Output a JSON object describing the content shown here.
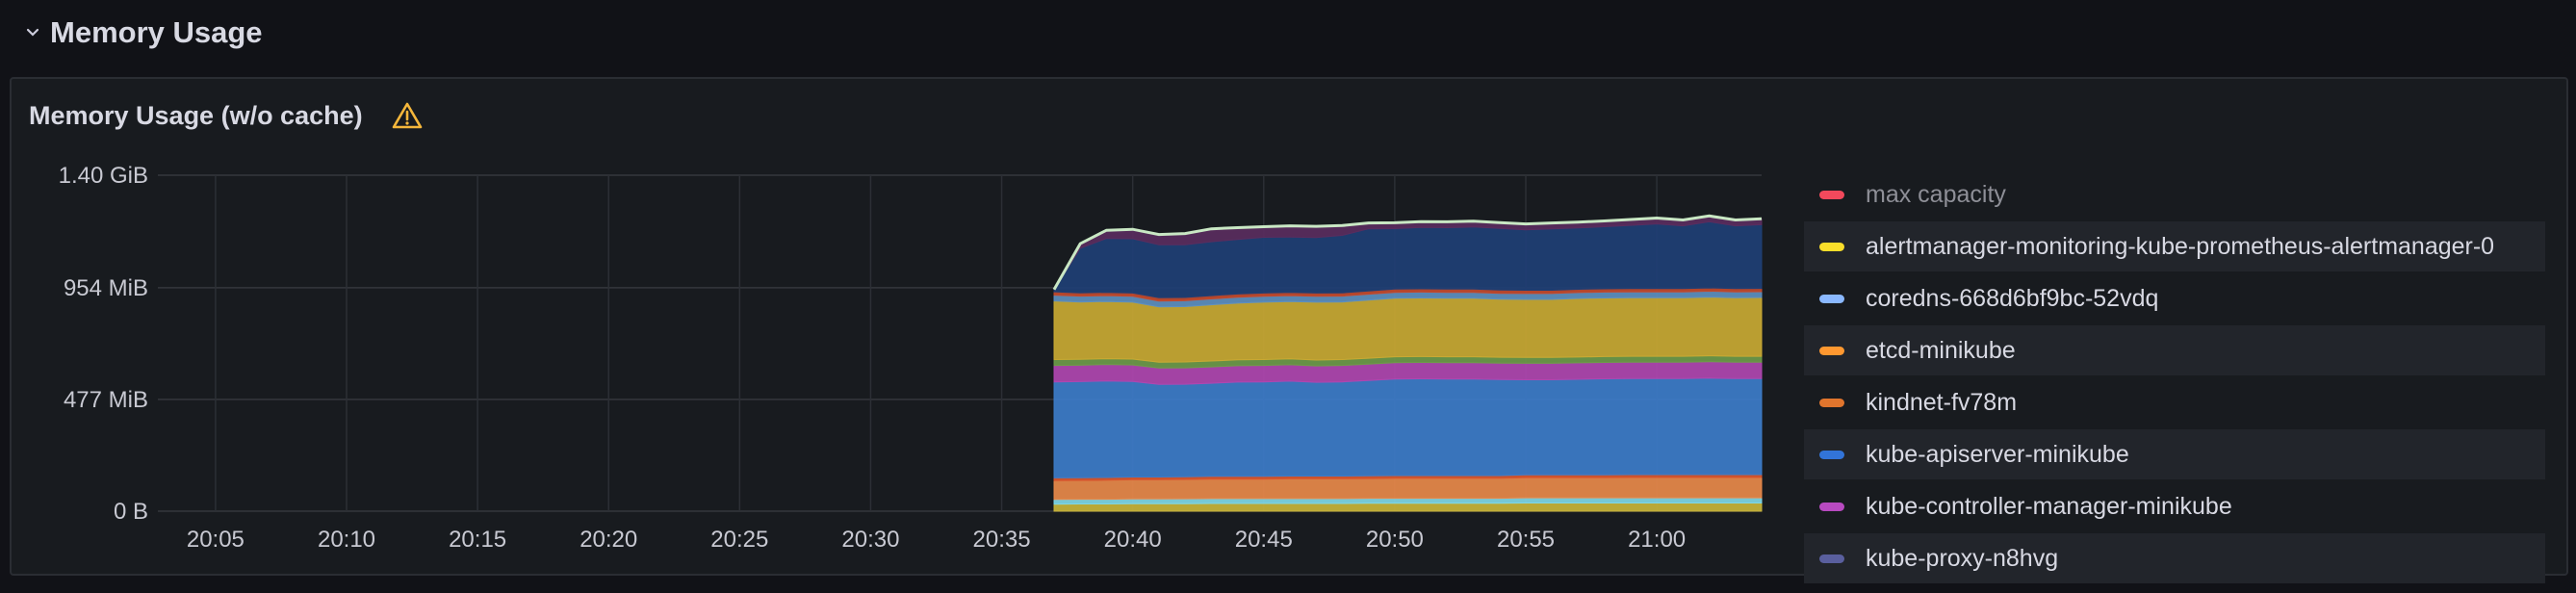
{
  "row": {
    "title": "Memory Usage"
  },
  "panel": {
    "title": "Memory Usage (w/o cache)"
  },
  "legend": [
    {
      "label": "max capacity",
      "color": "#f2495c",
      "muted": true
    },
    {
      "label": "alertmanager-monitoring-kube-prometheus-alertmanager-0",
      "color": "#fade2a"
    },
    {
      "label": "coredns-668d6bf9bc-52vdq",
      "color": "#8ab8ff"
    },
    {
      "label": "etcd-minikube",
      "color": "#ff9830"
    },
    {
      "label": "kindnet-fv78m",
      "color": "#e0752d"
    },
    {
      "label": "kube-apiserver-minikube",
      "color": "#3274d9"
    },
    {
      "label": "kube-controller-manager-minikube",
      "color": "#b84ac0"
    },
    {
      "label": "kube-proxy-n8hvg",
      "color": "#5a5f9e"
    }
  ],
  "chart_data": {
    "type": "area",
    "stacked": true,
    "y_ticks": [
      "0 B",
      "477 MiB",
      "954 MiB",
      "1.40 GiB"
    ],
    "y_tick_values_mib": [
      0,
      477,
      954,
      1434
    ],
    "ylim_mib": [
      0,
      1434
    ],
    "x_ticks": [
      "20:05",
      "20:10",
      "20:15",
      "20:20",
      "20:25",
      "20:30",
      "20:35",
      "20:40",
      "20:45",
      "20:50",
      "20:55",
      "21:00"
    ],
    "x": [
      "20:37",
      "20:38",
      "20:39",
      "20:40",
      "20:41",
      "20:42",
      "20:43",
      "20:44",
      "20:45",
      "20:46",
      "20:47",
      "20:48",
      "20:49",
      "20:50",
      "20:51",
      "20:52",
      "20:53",
      "20:54",
      "20:55",
      "20:56",
      "20:57",
      "20:58",
      "20:59",
      "21:00",
      "21:01",
      "21:02",
      "21:03",
      "21:04"
    ],
    "grid": true,
    "legend_position": "right",
    "series": [
      {
        "color": "#c8b43a",
        "values": [
          30,
          31,
          31,
          32,
          32,
          32,
          33,
          33,
          33,
          33,
          33,
          33,
          34,
          34,
          34,
          34,
          34,
          34,
          35,
          35,
          35,
          35,
          35,
          35,
          35,
          35,
          35,
          35
        ]
      },
      {
        "color": "#7fd7e6",
        "values": [
          20,
          20,
          20,
          20,
          20,
          21,
          21,
          21,
          21,
          21,
          21,
          21,
          21,
          21,
          21,
          21,
          21,
          21,
          22,
          22,
          22,
          22,
          22,
          22,
          22,
          22,
          22,
          22
        ]
      },
      {
        "color": "#e8894a",
        "values": [
          80,
          80,
          81,
          82,
          82,
          82,
          83,
          83,
          83,
          84,
          84,
          84,
          84,
          85,
          85,
          85,
          85,
          85,
          86,
          86,
          86,
          86,
          87,
          87,
          87,
          87,
          87,
          87
        ]
      },
      {
        "color": "#d9572f",
        "values": [
          12,
          12,
          12,
          12,
          12,
          12,
          12,
          12,
          12,
          12,
          12,
          12,
          12,
          12,
          12,
          12,
          12,
          12,
          12,
          12,
          12,
          12,
          12,
          12,
          12,
          12,
          12,
          12
        ]
      },
      {
        "color": "#3d7cc9",
        "values": [
          410,
          410,
          412,
          408,
          395,
          395,
          397,
          402,
          403,
          405,
          400,
          402,
          407,
          412,
          413,
          412,
          412,
          410,
          406,
          406,
          408,
          410,
          410,
          410,
          410,
          412,
          410,
          410
        ]
      },
      {
        "color": "#b046b0",
        "values": [
          70,
          70,
          70,
          70,
          70,
          70,
          70,
          70,
          70,
          70,
          70,
          70,
          70,
          70,
          70,
          70,
          70,
          70,
          70,
          70,
          70,
          70,
          70,
          70,
          70,
          70,
          70,
          70
        ]
      },
      {
        "color": "#6e9a4a",
        "values": [
          25,
          25,
          25,
          25,
          25,
          25,
          25,
          25,
          25,
          25,
          25,
          25,
          25,
          25,
          25,
          25,
          25,
          25,
          25,
          25,
          25,
          25,
          25,
          25,
          25,
          25,
          25,
          25
        ]
      },
      {
        "color": "#c9a933",
        "values": [
          250,
          245,
          244,
          243,
          236,
          236,
          240,
          242,
          245,
          245,
          247,
          246,
          248,
          250,
          250,
          250,
          250,
          248,
          248,
          248,
          250,
          250,
          250,
          250,
          250,
          251,
          250,
          251
        ]
      },
      {
        "color": "#5d8fbf",
        "values": [
          25,
          25,
          25,
          25,
          25,
          25,
          25,
          25,
          25,
          25,
          25,
          25,
          25,
          25,
          25,
          25,
          25,
          25,
          25,
          25,
          25,
          25,
          25,
          25,
          25,
          25,
          25,
          25
        ]
      },
      {
        "color": "#c24a2e",
        "values": [
          14,
          14,
          14,
          14,
          14,
          14,
          14,
          14,
          14,
          14,
          14,
          14,
          14,
          14,
          14,
          14,
          14,
          14,
          14,
          14,
          14,
          14,
          14,
          14,
          14,
          14,
          14,
          14
        ]
      },
      {
        "color": "#1f3f75",
        "values": [
          10,
          190,
          230,
          232,
          226,
          225,
          230,
          233,
          238,
          236,
          237,
          245,
          265,
          258,
          262,
          262,
          265,
          263,
          258,
          262,
          262,
          265,
          270,
          276,
          268,
          282,
          268,
          272
        ]
      },
      {
        "color": "#5a2d5e",
        "values": [
          0,
          20,
          35,
          40,
          44,
          48,
          55,
          50,
          45,
          48,
          48,
          42,
          25,
          25,
          25,
          25,
          25,
          25,
          25,
          25,
          25,
          25,
          25,
          25,
          25,
          25,
          25,
          25
        ]
      }
    ]
  }
}
